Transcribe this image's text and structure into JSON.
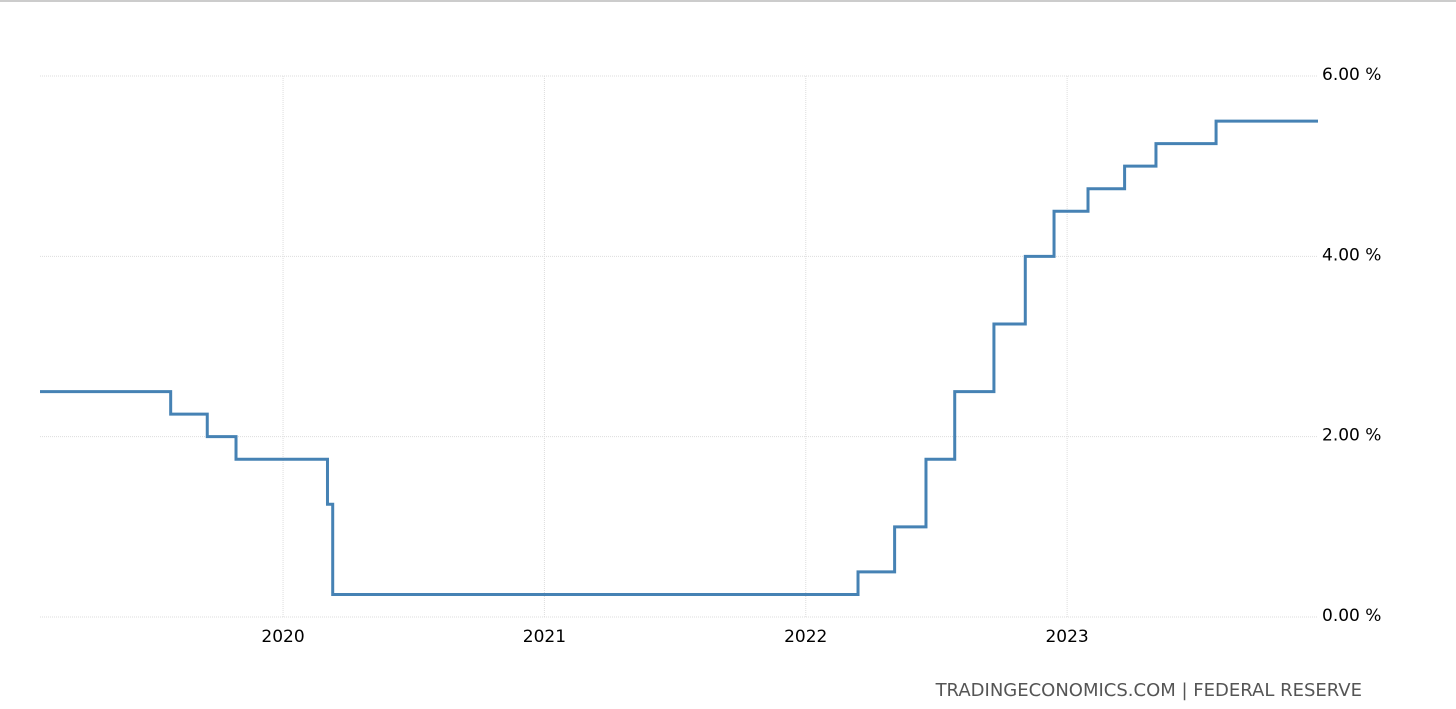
{
  "chart_data": {
    "type": "line",
    "source": "TRADINGECONOMICS.COM | FEDERAL RESERVE",
    "x": [
      2019.07,
      2019.57,
      2019.57,
      2019.71,
      2019.71,
      2019.82,
      2019.82,
      2020.17,
      2020.17,
      2020.19,
      2020.19,
      2022.2,
      2022.2,
      2022.34,
      2022.34,
      2022.46,
      2022.46,
      2022.57,
      2022.57,
      2022.72,
      2022.72,
      2022.84,
      2022.84,
      2022.95,
      2022.95,
      2023.08,
      2023.08,
      2023.22,
      2023.22,
      2023.34,
      2023.34,
      2023.57,
      2023.57,
      2023.96
    ],
    "values": [
      2.5,
      2.5,
      2.25,
      2.25,
      2.0,
      2.0,
      1.75,
      1.75,
      1.25,
      1.25,
      0.25,
      0.25,
      0.5,
      0.5,
      1.0,
      1.0,
      1.75,
      1.75,
      2.5,
      2.5,
      3.25,
      3.25,
      4.0,
      4.0,
      4.5,
      4.5,
      4.75,
      4.75,
      5.0,
      5.0,
      5.25,
      5.25,
      5.5,
      5.5
    ],
    "color": "#4682b4",
    "xlim": [
      2019.07,
      2023.96
    ],
    "xticks": [
      2020,
      2021,
      2022,
      2023
    ],
    "ylim": [
      0,
      6
    ],
    "yticks": [
      {
        "value": 0,
        "label": "0.00 %"
      },
      {
        "value": 2,
        "label": "2.00 %"
      },
      {
        "value": 4,
        "label": "4.00 %"
      },
      {
        "value": 6,
        "label": "6.00 %"
      }
    ],
    "grid": true
  }
}
